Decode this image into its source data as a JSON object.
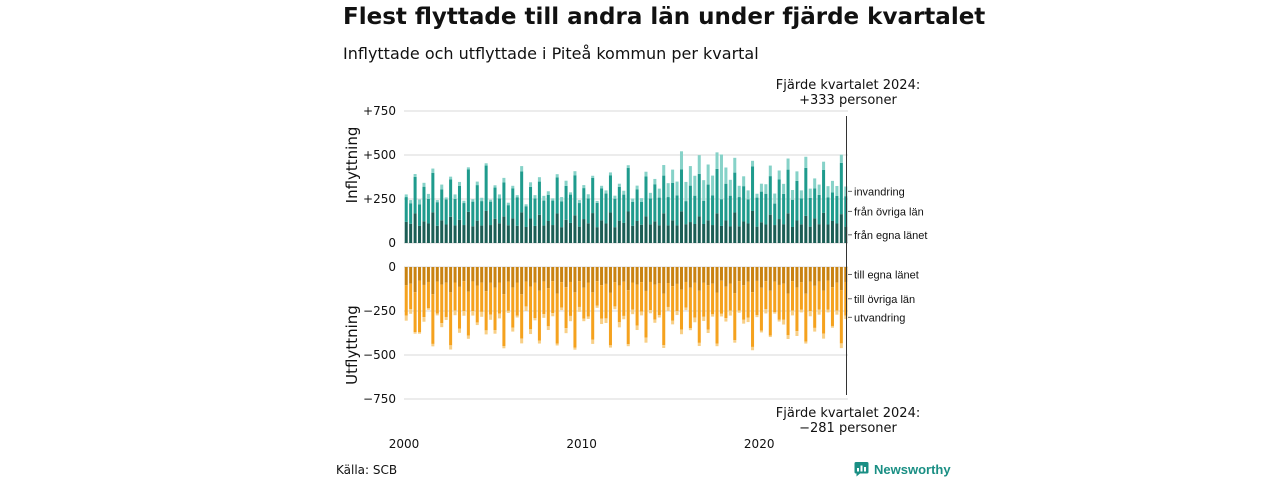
{
  "title": "Flest flyttade till andra län under fjärde kvartalet",
  "subtitle": "Inflyttade och utflyttade i Piteå kommun per kvartal",
  "source": "Källa: SCB",
  "brand": {
    "name": "Newsworthy",
    "icon": "bar-chart-logo-icon"
  },
  "chart_data": [
    {
      "type": "bar",
      "stacked": true,
      "ylabel": "Inflyttning",
      "ylim": [
        0,
        750
      ],
      "yticks": [
        "0",
        "+250",
        "+500",
        "+750"
      ],
      "grid": true,
      "annotation": {
        "line1": "Fjärde kvartalet 2024:",
        "line2": "+333 personer"
      },
      "colors": {
        "egna": "#1b5e55",
        "ovriga": "#1f9b8d",
        "invandring": "#86d2c8"
      },
      "series": [
        {
          "key": "egna",
          "name": "från egna länet",
          "values": []
        },
        {
          "key": "ovriga",
          "name": "från övriga län",
          "values": []
        },
        {
          "key": "invandring",
          "name": "invandring",
          "values": []
        }
      ]
    },
    {
      "type": "bar",
      "stacked": true,
      "ylabel": "Utflyttning",
      "ylim": [
        -750,
        0
      ],
      "yticks": [
        "0",
        "−250",
        "−500",
        "−750"
      ],
      "grid": true,
      "annotation": {
        "line1": "Fjärde kvartalet 2024:",
        "line2": "−281 personer"
      },
      "colors": {
        "egna": "#c98210",
        "ovriga": "#f5a21e",
        "utvandring": "#f8cf86"
      },
      "series": [
        {
          "key": "egna",
          "name": "till egna länet",
          "values": []
        },
        {
          "key": "ovriga",
          "name": "till övriga län",
          "values": []
        },
        {
          "key": "utvandring",
          "name": "utvandring",
          "values": []
        }
      ]
    }
  ],
  "x_axis": {
    "start": "2000 Q1",
    "end": "2024 Q4",
    "quarters": 100,
    "ticks": [
      "2000",
      "2010",
      "2020"
    ]
  }
}
